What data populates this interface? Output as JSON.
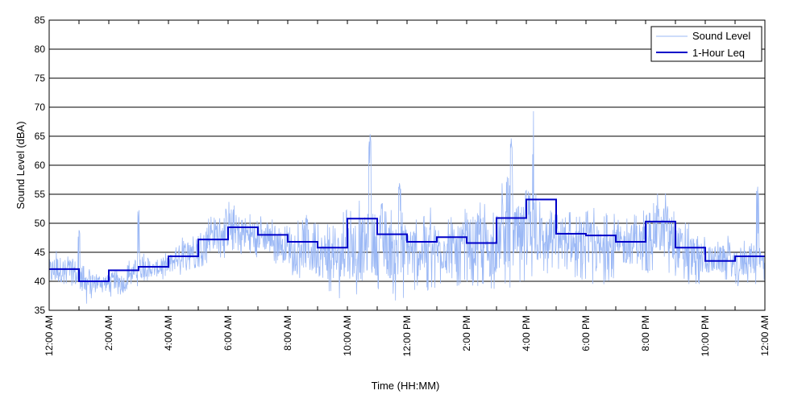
{
  "chart_data": {
    "type": "line",
    "xlabel": "Time (HH:MM)",
    "ylabel": "Sound Level (dBA)",
    "ylim": [
      35,
      85
    ],
    "xlim_hours": [
      0,
      24
    ],
    "y_ticks": [
      35,
      40,
      45,
      50,
      55,
      60,
      65,
      70,
      75,
      80,
      85
    ],
    "x_tick_labels": [
      "12:00 AM",
      "2:00 AM",
      "4:00 AM",
      "6:00 AM",
      "8:00 AM",
      "10:00 AM",
      "12:00 PM",
      "2:00 PM",
      "4:00 PM",
      "6:00 PM",
      "8:00 PM",
      "10:00 PM",
      "12:00 AM"
    ],
    "x_tick_hours": [
      0,
      2,
      4,
      6,
      8,
      10,
      12,
      14,
      16,
      18,
      20,
      22,
      24
    ],
    "grid": "horizontal",
    "legend": "top-right",
    "series": [
      {
        "name": "Sound Level",
        "color": "#9bb8f5",
        "style": "thin-line",
        "x_hours": [
          0,
          0.25,
          0.5,
          0.75,
          1,
          1.25,
          1.5,
          1.75,
          2,
          2.25,
          2.5,
          2.75,
          3,
          3.25,
          3.5,
          3.75,
          4,
          4.25,
          4.5,
          4.75,
          5,
          5.25,
          5.5,
          5.75,
          6,
          6.25,
          6.5,
          6.75,
          7,
          7.25,
          7.5,
          7.75,
          8,
          8.25,
          8.5,
          8.75,
          9,
          9.25,
          9.5,
          9.75,
          10,
          10.25,
          10.5,
          10.75,
          11,
          11.25,
          11.5,
          11.75,
          12,
          12.25,
          12.5,
          12.75,
          13,
          13.25,
          13.5,
          13.75,
          14,
          14.25,
          14.5,
          14.75,
          15,
          15.25,
          15.5,
          15.75,
          16,
          16.25,
          16.5,
          16.75,
          17,
          17.25,
          17.5,
          17.75,
          18,
          18.25,
          18.5,
          18.75,
          19,
          19.25,
          19.5,
          19.75,
          20,
          20.25,
          20.5,
          20.75,
          21,
          21.25,
          21.5,
          21.75,
          22,
          22.25,
          22.5,
          22.75,
          23,
          23.25,
          23.5,
          23.75,
          24
        ],
        "min": [
          38,
          38,
          39,
          39,
          37,
          36,
          37,
          38,
          37,
          38,
          37,
          39,
          39,
          40,
          40,
          40,
          40,
          41,
          41,
          42,
          42,
          43,
          44,
          44,
          44,
          45,
          44,
          44,
          44,
          44,
          43,
          43,
          41,
          41,
          40,
          39,
          39,
          38,
          38,
          37,
          38,
          37,
          37,
          38,
          38,
          39,
          37,
          36,
          38,
          38,
          39,
          38,
          39,
          39,
          38,
          39,
          40,
          39,
          39,
          38,
          39,
          39,
          38,
          39,
          40,
          40,
          41,
          41,
          42,
          42,
          41,
          40,
          40,
          39,
          39,
          40,
          40,
          41,
          41,
          41,
          41,
          42,
          42,
          41,
          40,
          40,
          39,
          39,
          40,
          40,
          40,
          40,
          39,
          39,
          40,
          39,
          40
        ],
        "max": [
          45,
          46,
          45,
          44,
          49,
          43,
          42,
          42,
          42,
          43,
          42,
          44,
          53,
          45,
          44,
          45,
          45,
          47,
          48,
          49,
          50,
          51,
          52,
          53,
          54,
          53,
          53,
          52,
          52,
          51,
          51,
          50,
          52,
          51,
          53,
          51,
          50,
          51,
          50,
          51,
          53,
          54,
          53,
          66,
          55,
          53,
          52,
          57,
          53,
          52,
          51,
          53,
          52,
          53,
          51,
          52,
          53,
          54,
          55,
          52,
          52,
          58,
          65,
          54,
          56,
          70,
          54,
          53,
          53,
          52,
          52,
          51,
          52,
          53,
          51,
          52,
          52,
          51,
          52,
          52,
          54,
          56,
          55,
          56,
          52,
          51,
          50,
          49,
          48,
          47,
          47,
          48,
          46,
          47,
          48,
          57,
          47
        ]
      },
      {
        "name": "1-Hour Leq",
        "color": "#0000c8",
        "style": "step",
        "hour_start": [
          0,
          1,
          2,
          3,
          4,
          5,
          6,
          7,
          8,
          9,
          10,
          11,
          12,
          13,
          14,
          15,
          16,
          17,
          18,
          19,
          20,
          21,
          22,
          23
        ],
        "values": [
          42.1,
          40.0,
          41.9,
          42.5,
          44.3,
          47.2,
          49.3,
          48.0,
          46.8,
          45.8,
          50.8,
          48.1,
          46.8,
          47.6,
          46.6,
          50.9,
          54.1,
          48.2,
          47.9,
          46.8,
          50.3,
          45.8,
          43.5,
          44.3
        ]
      }
    ]
  }
}
